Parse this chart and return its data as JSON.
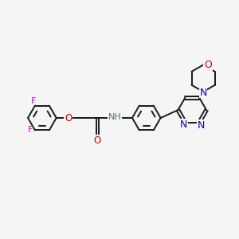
{
  "background_color": "#f5f5f5",
  "bond_color": "#1a1a1a",
  "bond_lw": 1.4,
  "heteroatom_colors": {
    "F": "#cc00cc",
    "O": "#cc0000",
    "N_blue": "#0000cc",
    "NH": "#4a7a7a"
  },
  "ring_r": 18,
  "figsize": [
    3.0,
    3.0
  ],
  "dpi": 100,
  "xlim": [
    0,
    300
  ],
  "ylim": [
    0,
    300
  ]
}
